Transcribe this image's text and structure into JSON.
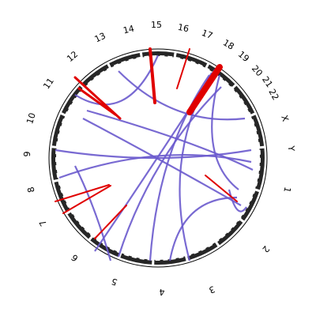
{
  "chromosomes": [
    "1",
    "2",
    "3",
    "4",
    "5",
    "6",
    "7",
    "8",
    "9",
    "10",
    "11",
    "12",
    "13",
    "14",
    "15",
    "16",
    "17",
    "18",
    "19",
    "20",
    "21",
    "22",
    "X",
    "Y"
  ]
}
